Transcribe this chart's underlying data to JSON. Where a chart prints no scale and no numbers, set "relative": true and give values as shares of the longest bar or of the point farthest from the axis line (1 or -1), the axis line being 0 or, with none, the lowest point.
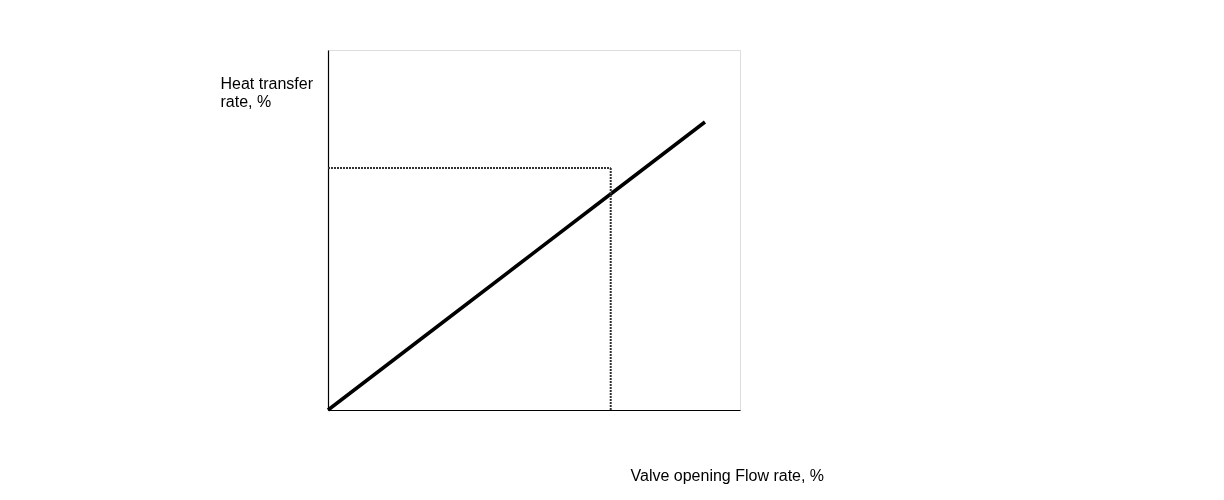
{
  "chart_data": {
    "type": "line",
    "relative": true,
    "xlabel": "Valve opening Flow rate, %",
    "ylabel": "Heat transfer\nrate, %",
    "tick_labels": false,
    "categories": [
      null,
      null,
      null,
      null,
      null
    ],
    "series": [
      {
        "color": "#000000",
        "values": [
          0,
          0.25,
          0.5,
          0.75,
          1
        ]
      }
    ],
    "ref_lines": [
      {
        "axis": "y",
        "value": 0.84,
        "color": "#333333",
        "line_style": "dotted"
      }
    ]
  }
}
